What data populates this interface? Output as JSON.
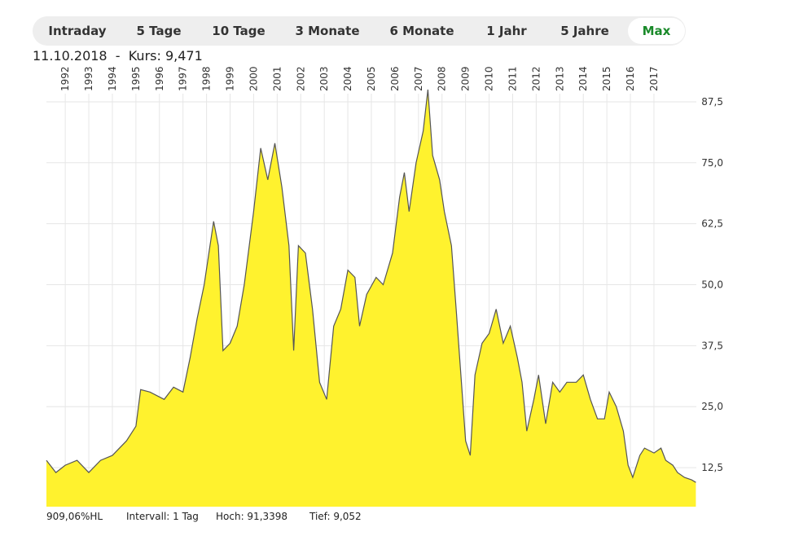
{
  "tabs": [
    "Intraday",
    "5 Tage",
    "10 Tage",
    "3 Monate",
    "6 Monate",
    "1 Jahr",
    "5 Jahre",
    "Max"
  ],
  "active_tab": 7,
  "header": "11.10.2018  -  Kurs: 9,471",
  "chart_data": {
    "type": "area",
    "color": "#fff22e",
    "line_color": "#555555",
    "grid": true,
    "x": [
      1991.2,
      1991.6,
      1992.0,
      1992.5,
      1993.0,
      1993.5,
      1994.0,
      1994.6,
      1995.0,
      1995.2,
      1995.6,
      1996.2,
      1996.6,
      1997.0,
      1997.3,
      1997.6,
      1997.9,
      1998.3,
      1998.5,
      1998.7,
      1999.0,
      1999.3,
      1999.6,
      2000.0,
      2000.3,
      2000.6,
      2000.9,
      2001.2,
      2001.5,
      2001.7,
      2001.9,
      2002.2,
      2002.5,
      2002.8,
      2003.1,
      2003.4,
      2003.7,
      2004.0,
      2004.3,
      2004.5,
      2004.8,
      2005.2,
      2005.5,
      2005.9,
      2006.2,
      2006.4,
      2006.6,
      2006.9,
      2007.2,
      2007.4,
      2007.6,
      2007.9,
      2008.1,
      2008.4,
      2008.6,
      2008.8,
      2009.0,
      2009.2,
      2009.4,
      2009.7,
      2010.0,
      2010.3,
      2010.6,
      2010.9,
      2011.2,
      2011.4,
      2011.6,
      2011.9,
      2012.1,
      2012.4,
      2012.7,
      2013.0,
      2013.3,
      2013.7,
      2014.0,
      2014.3,
      2014.6,
      2014.9,
      2015.1,
      2015.4,
      2015.7,
      2015.9,
      2016.1,
      2016.4,
      2016.6,
      2017.0,
      2017.3,
      2017.5,
      2017.8,
      2018.0,
      2018.3,
      2018.6,
      2018.78
    ],
    "values": [
      14,
      11.5,
      13,
      14,
      11.5,
      14,
      15,
      18,
      21,
      28.5,
      28,
      26.5,
      29,
      28,
      35,
      43,
      50,
      63,
      58,
      36.5,
      38,
      41.5,
      50,
      65,
      78,
      71.5,
      79,
      70,
      58,
      36.5,
      58,
      56.5,
      45,
      30,
      26.5,
      41.5,
      45,
      53,
      51.5,
      41.5,
      48,
      51.5,
      50,
      56.5,
      68,
      73,
      65,
      75,
      81.5,
      90,
      76.5,
      71.5,
      65,
      58,
      45,
      31.5,
      18,
      15,
      31.5,
      38,
      40,
      45,
      38,
      41.5,
      35,
      30,
      20,
      26.5,
      31.5,
      21.5,
      30,
      28,
      30,
      30,
      31.5,
      26.5,
      22.5,
      22.5,
      28,
      25,
      20,
      13,
      10.5,
      15,
      16.5,
      15.5,
      16.5,
      14,
      13,
      11.5,
      10.5,
      10,
      9.471
    ],
    "xlim": [
      1991.2,
      2018.8
    ],
    "xticks": [
      1992,
      1993,
      1994,
      1995,
      1996,
      1997,
      1998,
      1999,
      2000,
      2001,
      2002,
      2003,
      2004,
      2005,
      2006,
      2007,
      2008,
      2009,
      2010,
      2011,
      2012,
      2013,
      2014,
      2015,
      2016,
      2017
    ],
    "ylim": [
      4.5,
      92.5
    ],
    "yticks": [
      {
        "value": 12.5,
        "label": "12,5"
      },
      {
        "value": 25,
        "label": "25,0"
      },
      {
        "value": 37.5,
        "label": "37,5"
      },
      {
        "value": 50,
        "label": "50,0"
      },
      {
        "value": 62.5,
        "label": "62,5"
      },
      {
        "value": 75,
        "label": "75,0"
      },
      {
        "value": 87.5,
        "label": "87,5"
      }
    ]
  },
  "footer": [
    "909,06%HL",
    "Intervall: 1 Tag",
    "Hoch: 91,3398",
    "Tief: 9,052"
  ]
}
